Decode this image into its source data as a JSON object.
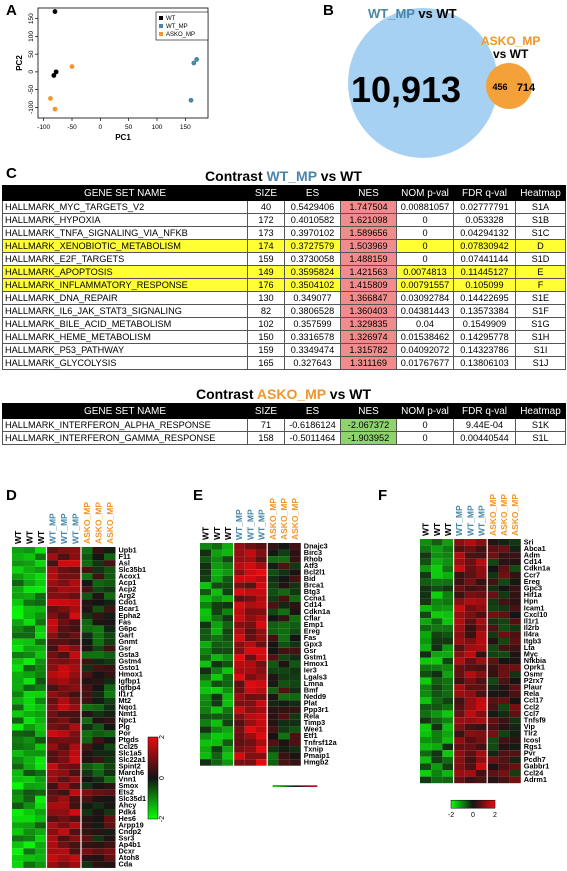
{
  "panels": {
    "a": "A",
    "b": "B",
    "c": "C",
    "d": "D",
    "e": "E",
    "f": "F"
  },
  "colors": {
    "wt": "#000000",
    "wt_mp": "#4a86a8",
    "asko_mp": "#f0962a",
    "venn_left": "#a7d1f3",
    "venn_right": "#f5a13a",
    "nes_pos": "#f28c8c",
    "nes_neg": "#8ed36b",
    "highlight": "#ffff33"
  },
  "pca": {
    "xlabel": "PC1",
    "ylabel": "PC2",
    "xticks": [
      "-100",
      "-50",
      "0",
      "50",
      "100",
      "150"
    ],
    "yticks": [
      "-100",
      "-50",
      "0",
      "50",
      "100",
      "150"
    ],
    "xlim": [
      -110,
      190
    ],
    "ylim": [
      -130,
      180
    ],
    "legend": [
      "WT",
      "WT_MP",
      "ASKO_MP"
    ],
    "points": [
      {
        "group": "WT",
        "x": -80,
        "y": 170
      },
      {
        "group": "WT",
        "x": -78,
        "y": 0
      },
      {
        "group": "WT",
        "x": -82,
        "y": -10
      },
      {
        "group": "WT_MP",
        "x": 170,
        "y": 35
      },
      {
        "group": "WT_MP",
        "x": 165,
        "y": 25
      },
      {
        "group": "WT_MP",
        "x": 160,
        "y": -80
      },
      {
        "group": "ASKO_MP",
        "x": -50,
        "y": 15
      },
      {
        "group": "ASKO_MP",
        "x": -88,
        "y": -75
      },
      {
        "group": "ASKO_MP",
        "x": -80,
        "y": -105
      }
    ]
  },
  "venn": {
    "left_label": "WT_MP",
    "left_vs": " vs WT",
    "right_label": "ASKO_MP",
    "right_vs": "vs WT",
    "left_only": "10,913",
    "overlap": "456",
    "right_only": "714"
  },
  "tables": {
    "header": [
      "GENE SET NAME",
      "SIZE",
      "ES",
      "NES",
      "NOM p-val",
      "FDR q-val",
      "Heatmap"
    ],
    "wt_mp": {
      "title_pre": "Contrast ",
      "title_group": "WT_MP",
      "title_post": " vs WT",
      "rows": [
        {
          "name": "HALLMARK_MYC_TARGETS_V2",
          "size": "40",
          "es": "0.5429406",
          "nes": "1.747504",
          "nom": "0.00881057",
          "fdr": "0.02777791",
          "heat": "S1A",
          "hl": false
        },
        {
          "name": "HALLMARK_HYPOXIA",
          "size": "172",
          "es": "0.4010582",
          "nes": "1.621098",
          "nom": "0",
          "fdr": "0.053328",
          "heat": "S1B",
          "hl": false
        },
        {
          "name": "HALLMARK_TNFA_SIGNALING_VIA_NFKB",
          "size": "173",
          "es": "0.3970102",
          "nes": "1.589656",
          "nom": "0",
          "fdr": "0.04294132",
          "heat": "S1C",
          "hl": false
        },
        {
          "name": "HALLMARK_XENOBIOTIC_METABOLISM",
          "size": "174",
          "es": "0.3727579",
          "nes": "1.503969",
          "nom": "0",
          "fdr": "0.07830942",
          "heat": "D",
          "hl": true
        },
        {
          "name": "HALLMARK_E2F_TARGETS",
          "size": "159",
          "es": "0.3730058",
          "nes": "1.488159",
          "nom": "0",
          "fdr": "0.07441144",
          "heat": "S1D",
          "hl": false
        },
        {
          "name": "HALLMARK_APOPTOSIS",
          "size": "149",
          "es": "0.3595824",
          "nes": "1.421563",
          "nom": "0.0074813",
          "fdr": "0.11445127",
          "heat": "E",
          "hl": true
        },
        {
          "name": "HALLMARK_INFLAMMATORY_RESPONSE",
          "size": "176",
          "es": "0.3504102",
          "nes": "1.415809",
          "nom": "0.00791557",
          "fdr": "0.105099",
          "heat": "F",
          "hl": true
        },
        {
          "name": "HALLMARK_DNA_REPAIR",
          "size": "130",
          "es": "0.349077",
          "nes": "1.366847",
          "nom": "0.03092784",
          "fdr": "0.14422695",
          "heat": "S1E",
          "hl": false
        },
        {
          "name": "HALLMARK_IL6_JAK_STAT3_SIGNALING",
          "size": "82",
          "es": "0.3806528",
          "nes": "1.360403",
          "nom": "0.04381443",
          "fdr": "0.13573384",
          "heat": "S1F",
          "hl": false
        },
        {
          "name": "HALLMARK_BILE_ACID_METABOLISM",
          "size": "102",
          "es": "0.357599",
          "nes": "1.329835",
          "nom": "0.04",
          "fdr": "0.1549909",
          "heat": "S1G",
          "hl": false
        },
        {
          "name": "HALLMARK_HEME_METABOLISM",
          "size": "150",
          "es": "0.3316578",
          "nes": "1.326974",
          "nom": "0.01538462",
          "fdr": "0.14295778",
          "heat": "S1H",
          "hl": false
        },
        {
          "name": "HALLMARK_P53_PATHWAY",
          "size": "159",
          "es": "0.3349474",
          "nes": "1.315782",
          "nom": "0.04092072",
          "fdr": "0.14323786",
          "heat": "S1I",
          "hl": false
        },
        {
          "name": "HALLMARK_GLYCOLYSIS",
          "size": "165",
          "es": "0.327643",
          "nes": "1.311169",
          "nom": "0.01767677",
          "fdr": "0.13806103",
          "heat": "S1J",
          "hl": false
        }
      ]
    },
    "asko_mp": {
      "title_pre": "Contrast ",
      "title_group": "ASKO_MP",
      "title_post": " vs WT",
      "rows": [
        {
          "name": "HALLMARK_INTERFERON_ALPHA_RESPONSE",
          "size": "71",
          "es": "-0.6186124",
          "nes": "-2.067372",
          "nom": "0",
          "fdr": "9.44E-04",
          "heat": "S1K",
          "hl": false
        },
        {
          "name": "HALLMARK_INTERFERON_GAMMA_RESPONSE",
          "size": "158",
          "es": "-0.5011464",
          "nes": "-1.903952",
          "nom": "0",
          "fdr": "0.00440544",
          "heat": "S1L",
          "hl": false
        }
      ]
    }
  },
  "heatmaps": {
    "columns": [
      {
        "label": "WT",
        "group": "WT"
      },
      {
        "label": "WT",
        "group": "WT"
      },
      {
        "label": "WT",
        "group": "WT"
      },
      {
        "label": "WT_MP",
        "group": "WT_MP"
      },
      {
        "label": "WT_MP",
        "group": "WT_MP"
      },
      {
        "label": "WT_MP",
        "group": "WT_MP"
      },
      {
        "label": "ASKO_MP",
        "group": "ASKO_MP"
      },
      {
        "label": "ASKO_MP",
        "group": "ASKO_MP"
      },
      {
        "label": "ASKO_MP",
        "group": "ASKO_MP"
      }
    ],
    "scale_ticks": [
      "-2",
      "0",
      "2"
    ],
    "d_scale_ticks": [
      "2",
      "0",
      "-2"
    ],
    "d_genes": [
      "Upb1",
      "F11",
      "Asl",
      "Slc35b1",
      "Acox1",
      "Acp1",
      "Acp2",
      "Arg2",
      "Cdo1",
      "Bcar1",
      "Epha2",
      "Fas",
      "G6pc",
      "Gart",
      "Gnmt",
      "Gsr",
      "Gsta3",
      "Gstm4",
      "Gsto1",
      "Hmox1",
      "Igfbp1",
      "Igfbp4",
      "Il1r1",
      "Mt2",
      "Nqo1",
      "Nmt1",
      "Npc1",
      "Plg",
      "Por",
      "Ptgds",
      "Ccl25",
      "Slc1a5",
      "Slc22a1",
      "Spint2",
      "March6",
      "Vnn1",
      "Smox",
      "Ets2",
      "Slc35d1",
      "Ahcy",
      "Pdk4",
      "Hes6",
      "Arpp19",
      "Cndp2",
      "Ssr3",
      "Ap4b1",
      "Dcxr",
      "Atoh8",
      "Cda"
    ],
    "e_genes": [
      "Dnajc3",
      "Birc3",
      "Rhob",
      "Atf3",
      "Bcl2l1",
      "Bid",
      "Brca1",
      "Btg3",
      "Ccna1",
      "Cd14",
      "Cdkn1a",
      "Cflar",
      "Emp1",
      "Ereg",
      "Fas",
      "Gpx3",
      "Gsr",
      "Gstm1",
      "Hmox1",
      "Ier3",
      "Lgals3",
      "Lmna",
      "Bmf",
      "Nedd9",
      "Plat",
      "Ppp3r1",
      "Rela",
      "Timp3",
      "Wee1",
      "Etf1",
      "Tnfrsf12a",
      "Txnip",
      "Pmaip1",
      "Hmgb2"
    ],
    "f_genes": [
      "Sri",
      "Abca1",
      "Adm",
      "Cd14",
      "Cdkn1a",
      "Ccr7",
      "Ereg",
      "Gpc3",
      "Hif1a",
      "Hpn",
      "Icam1",
      "Cxcl10",
      "Il1r1",
      "Il2rb",
      "Il4ra",
      "Itgb3",
      "Lta",
      "Myc",
      "Nfkbia",
      "Oprk1",
      "Osmr",
      "P2rx7",
      "Plaur",
      "Rela",
      "Ccl17",
      "Ccl2",
      "Ccl7",
      "Tnfsf9",
      "Vip",
      "Tlr2",
      "Icosl",
      "Rgs1",
      "Pvr",
      "Pcdh7",
      "Gabbr1",
      "Ccl24",
      "Adrm1"
    ]
  }
}
